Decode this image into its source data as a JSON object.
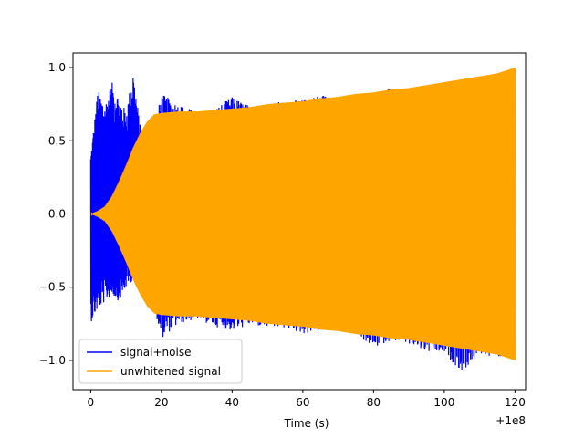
{
  "chart_data": {
    "type": "line",
    "title": "",
    "xlabel": "Time (s)",
    "ylabel": "",
    "x_offset_label": "+1e8",
    "xlim": [
      -5,
      123
    ],
    "ylim": [
      -1.2,
      1.1
    ],
    "xticks": [
      0,
      20,
      40,
      60,
      80,
      100,
      120
    ],
    "xtick_labels": [
      "0",
      "20",
      "40",
      "60",
      "80",
      "100",
      "120"
    ],
    "yticks": [
      -1.0,
      -0.5,
      0.0,
      0.5,
      1.0
    ],
    "ytick_labels": [
      "−1.0",
      "−0.5",
      "0.0",
      "0.5",
      "1.0"
    ],
    "grid": false,
    "legend_position": "lower-left",
    "series": [
      {
        "name": "signal+noise",
        "color": "#0000ff",
        "upper_envelope": {
          "x": [
            0,
            2,
            4,
            6,
            8,
            10,
            12,
            14,
            16,
            18,
            20,
            25,
            30,
            35,
            40,
            45,
            50,
            55,
            60,
            65,
            70,
            75,
            80,
            85,
            90,
            95,
            100,
            105,
            110,
            115,
            120
          ],
          "y": [
            0.4,
            0.85,
            0.75,
            0.9,
            0.8,
            0.7,
            0.98,
            0.6,
            0.55,
            0.6,
            0.82,
            0.75,
            0.7,
            0.72,
            0.8,
            0.74,
            0.76,
            0.77,
            0.78,
            0.82,
            0.8,
            0.82,
            0.84,
            0.86,
            0.85,
            0.88,
            0.9,
            0.92,
            0.93,
            0.96,
            0.98
          ]
        },
        "lower_envelope": {
          "x": [
            0,
            2,
            4,
            6,
            8,
            10,
            12,
            14,
            16,
            18,
            20,
            25,
            30,
            35,
            40,
            45,
            50,
            55,
            60,
            65,
            70,
            75,
            80,
            85,
            90,
            95,
            100,
            105,
            110,
            115,
            120
          ],
          "y": [
            -0.74,
            -0.65,
            -0.6,
            -0.55,
            -0.6,
            -0.5,
            -0.45,
            -0.4,
            -0.5,
            -0.65,
            -0.85,
            -0.75,
            -0.72,
            -0.77,
            -0.8,
            -0.76,
            -0.78,
            -0.78,
            -0.82,
            -0.8,
            -0.8,
            -0.82,
            -0.92,
            -0.86,
            -0.9,
            -0.95,
            -0.96,
            -1.08,
            -0.96,
            -0.98,
            -0.99
          ]
        }
      },
      {
        "name": "unwhitened signal",
        "color": "#ffa500",
        "upper_envelope": {
          "x": [
            0,
            2,
            4,
            6,
            8,
            10,
            12,
            14,
            16,
            18,
            20,
            25,
            30,
            35,
            40,
            45,
            50,
            55,
            60,
            65,
            70,
            75,
            80,
            85,
            90,
            95,
            100,
            105,
            110,
            115,
            120
          ],
          "y": [
            0.0,
            0.02,
            0.05,
            0.12,
            0.22,
            0.33,
            0.45,
            0.55,
            0.63,
            0.68,
            0.69,
            0.7,
            0.7,
            0.71,
            0.72,
            0.73,
            0.75,
            0.76,
            0.77,
            0.79,
            0.8,
            0.82,
            0.83,
            0.85,
            0.86,
            0.88,
            0.9,
            0.92,
            0.94,
            0.96,
            1.0
          ]
        },
        "lower_envelope": {
          "x": [
            0,
            2,
            4,
            6,
            8,
            10,
            12,
            14,
            16,
            18,
            20,
            25,
            30,
            35,
            40,
            45,
            50,
            55,
            60,
            65,
            70,
            75,
            80,
            85,
            90,
            95,
            100,
            105,
            110,
            115,
            120
          ],
          "y": [
            0.0,
            -0.02,
            -0.05,
            -0.12,
            -0.22,
            -0.33,
            -0.45,
            -0.55,
            -0.63,
            -0.68,
            -0.69,
            -0.7,
            -0.7,
            -0.71,
            -0.72,
            -0.73,
            -0.75,
            -0.76,
            -0.77,
            -0.79,
            -0.8,
            -0.82,
            -0.83,
            -0.85,
            -0.86,
            -0.88,
            -0.9,
            -0.92,
            -0.94,
            -0.96,
            -1.0
          ]
        }
      }
    ]
  }
}
